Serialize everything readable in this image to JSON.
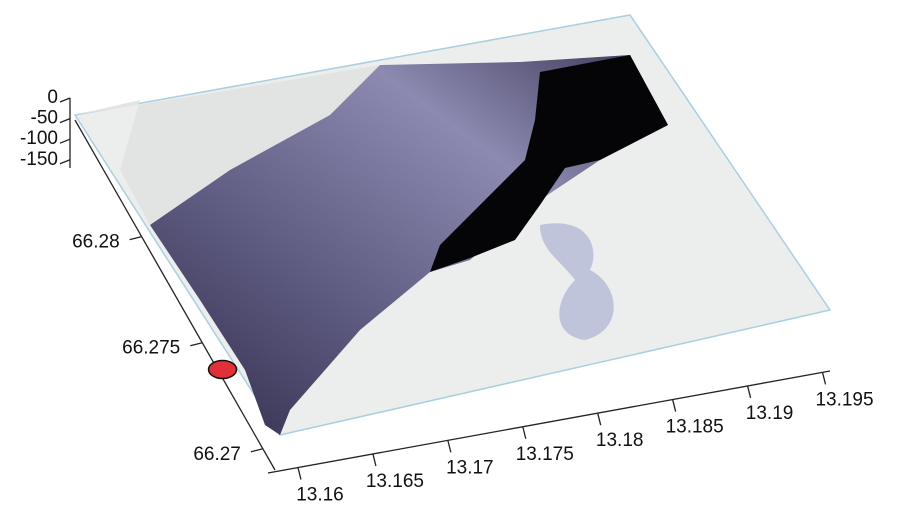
{
  "chart_data": {
    "type": "surface3d",
    "xlim": [
      13.158,
      13.1955
    ],
    "xticks": [
      13.16,
      13.165,
      13.17,
      13.175,
      13.18,
      13.185,
      13.19,
      13.195
    ],
    "ylim": [
      66.269,
      66.2855
    ],
    "yticks": [
      66.27,
      66.275,
      66.28
    ],
    "zlim": [
      -170,
      0
    ],
    "zticks": [
      0,
      -50,
      -100,
      -150
    ],
    "points": {
      "x": [
        13.1583
      ],
      "y": [
        66.2737
      ],
      "color": "#e0303a"
    }
  }
}
